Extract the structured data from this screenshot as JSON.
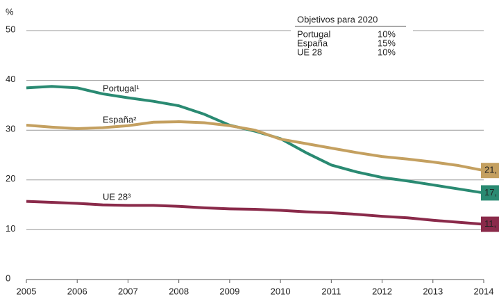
{
  "chart_data": {
    "type": "line",
    "ylabel": "%",
    "x": [
      2005,
      2005.5,
      2006,
      2006.5,
      2007,
      2007.5,
      2008,
      2008.5,
      2009,
      2009.5,
      2010,
      2010.5,
      2011,
      2011.5,
      2012,
      2012.5,
      2013,
      2013.5,
      2014
    ],
    "xlim": [
      2005,
      2014
    ],
    "xticks": [
      2005,
      2006,
      2007,
      2008,
      2009,
      2010,
      2011,
      2012,
      2013,
      2014
    ],
    "ylim": [
      0,
      50
    ],
    "yticks": [
      0,
      10,
      20,
      30,
      40,
      50
    ],
    "grid": true,
    "series": [
      {
        "name": "Portugal",
        "label": "Portugal¹",
        "color": "#2a8a72",
        "end_label": "17,",
        "target": "10%",
        "values": [
          38.5,
          38.8,
          38.5,
          37.3,
          36.5,
          35.8,
          34.9,
          33.2,
          31.0,
          29.8,
          28.3,
          25.5,
          23.0,
          21.6,
          20.5,
          19.8,
          19.0,
          18.2,
          17.4
        ]
      },
      {
        "name": "España",
        "label": "España²",
        "color": "#c4a060",
        "end_label": "21,",
        "target": "15%",
        "values": [
          31.0,
          30.6,
          30.3,
          30.5,
          30.9,
          31.6,
          31.7,
          31.5,
          30.9,
          30.0,
          28.2,
          27.3,
          26.4,
          25.5,
          24.7,
          24.2,
          23.6,
          22.9,
          21.9
        ]
      },
      {
        "name": "UE 28",
        "label": "UE 28³",
        "color": "#8a2a4a",
        "end_label": "11,",
        "target": "10%",
        "values": [
          15.7,
          15.5,
          15.3,
          15.0,
          14.9,
          14.9,
          14.7,
          14.4,
          14.2,
          14.1,
          13.9,
          13.6,
          13.4,
          13.1,
          12.7,
          12.4,
          11.9,
          11.5,
          11.1
        ]
      }
    ],
    "legend_title": "Objetivos para 2020"
  }
}
